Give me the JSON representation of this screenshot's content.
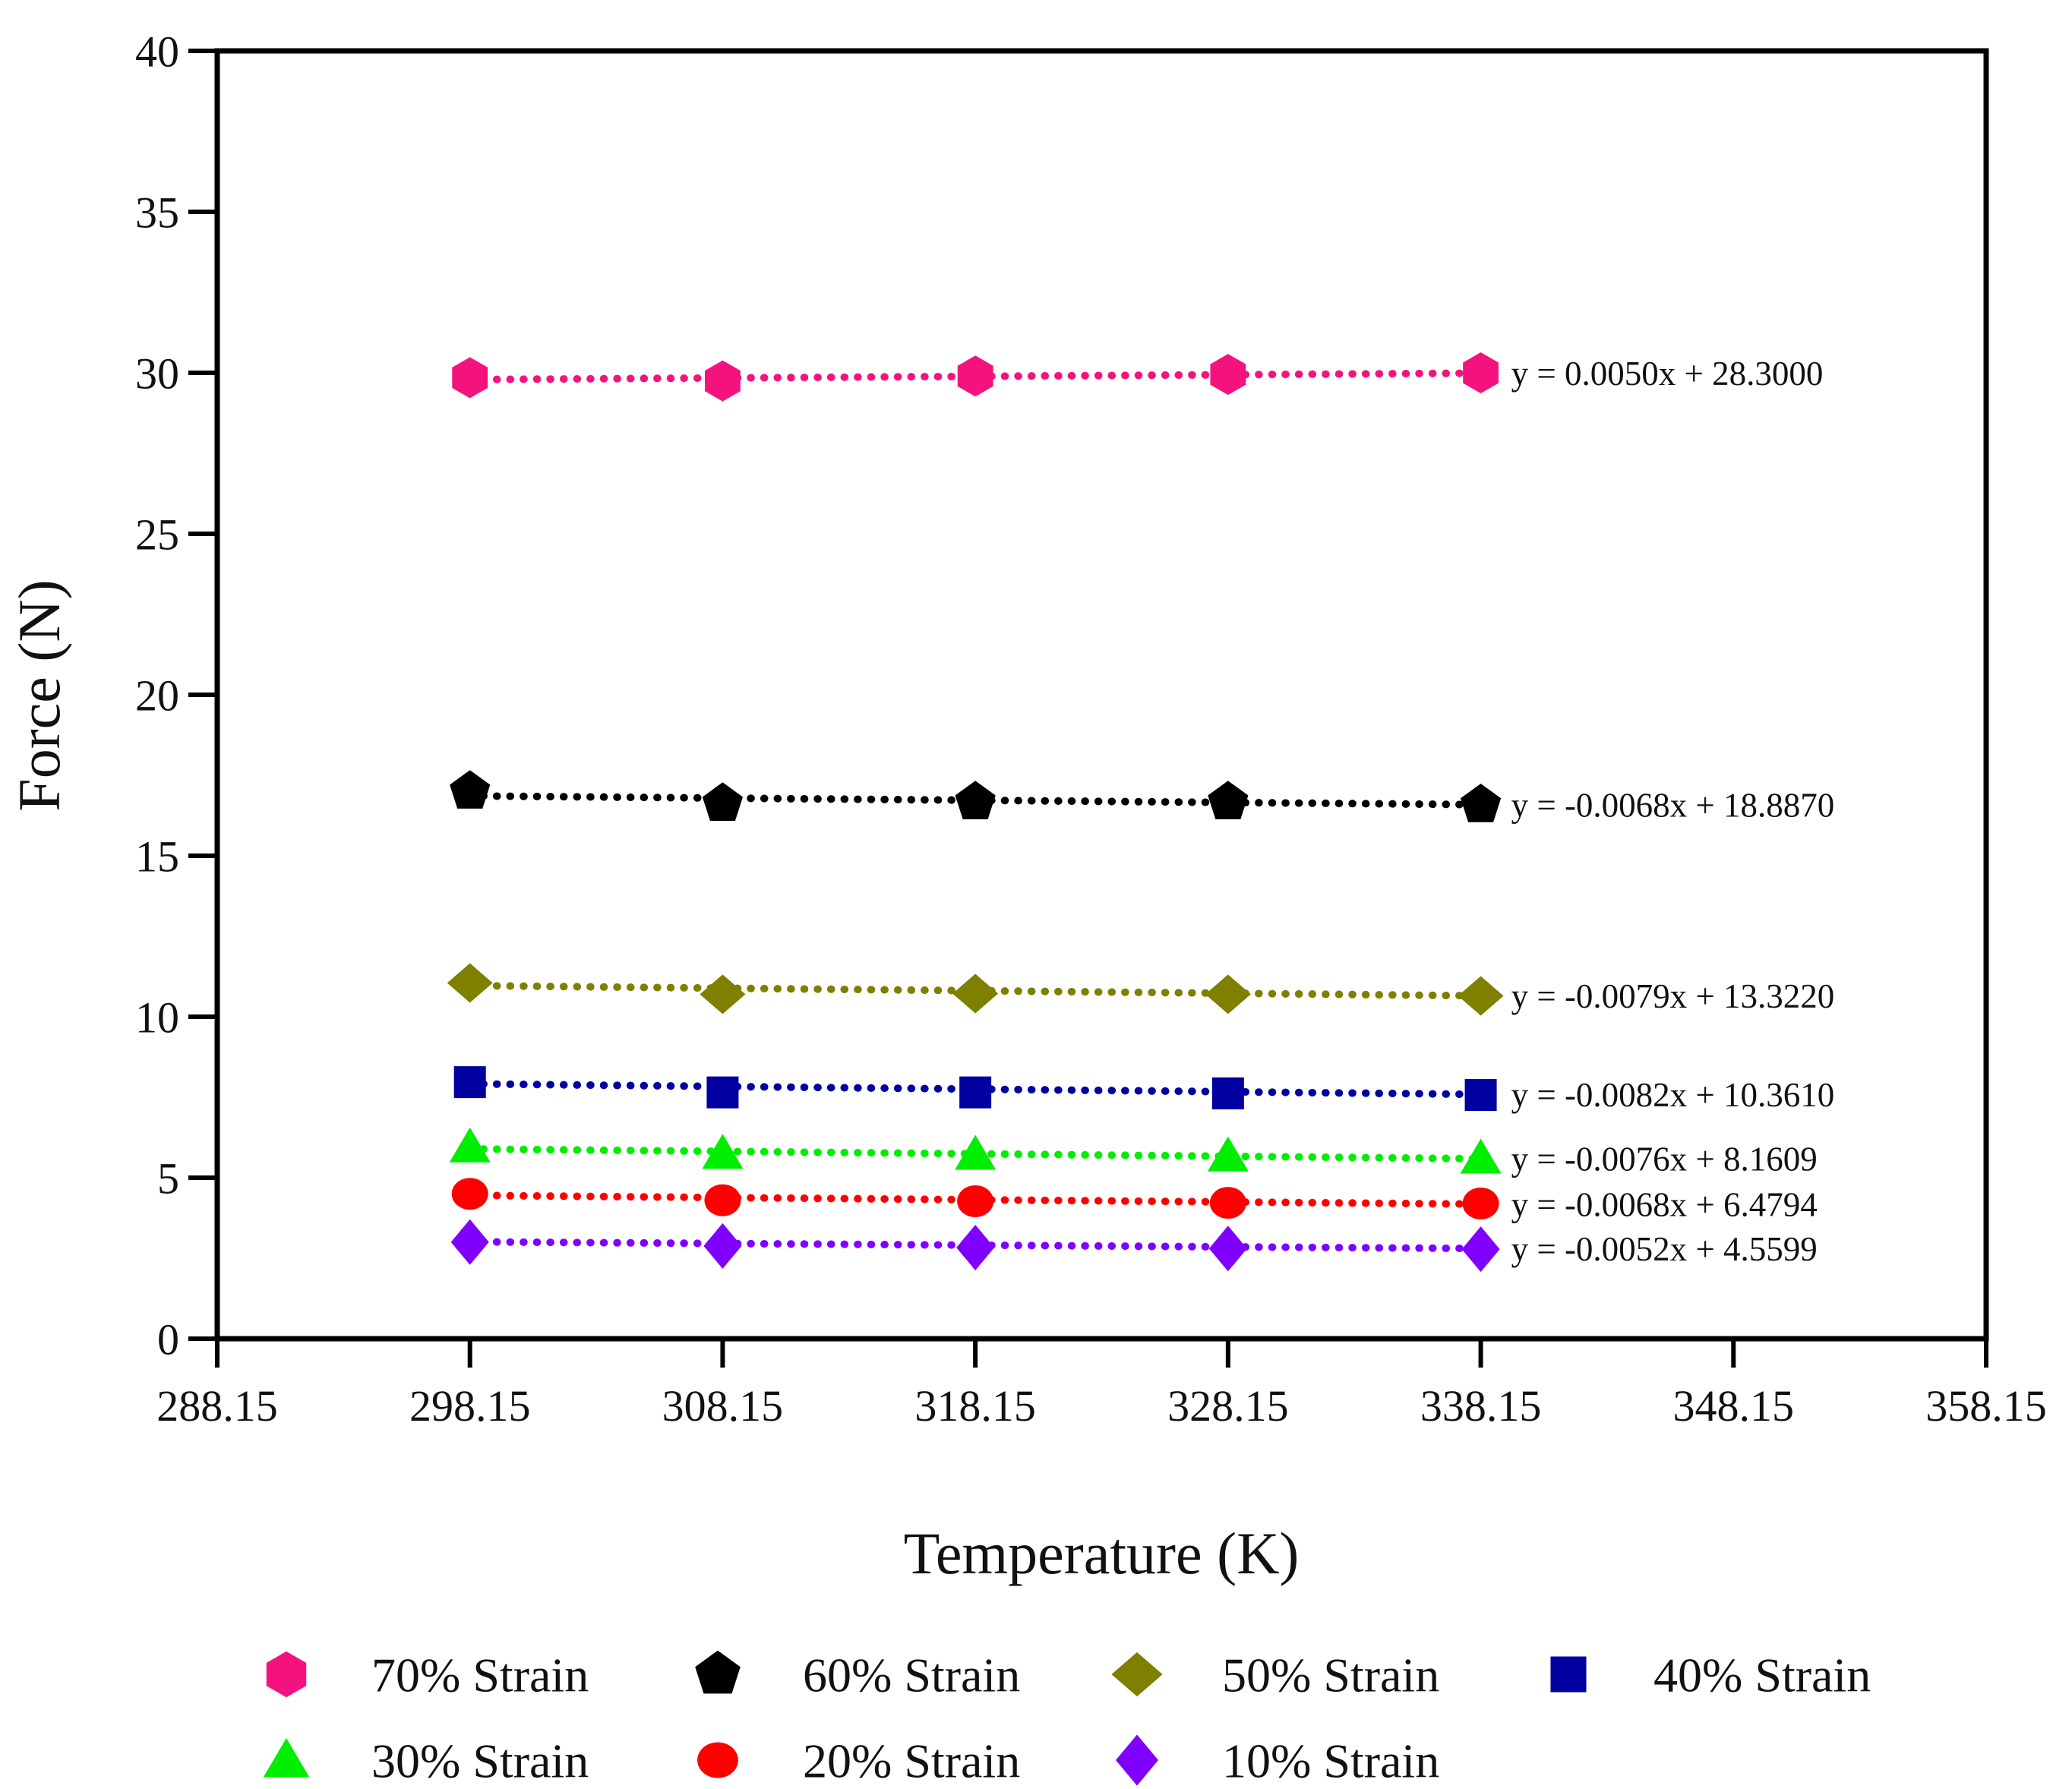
{
  "chart_data": {
    "type": "scatter",
    "title": "",
    "xlabel": "Temperature (K)",
    "ylabel": "Force (N)",
    "xlim": [
      288.15,
      358.15
    ],
    "ylim": [
      0,
      40
    ],
    "grid": false,
    "legend_position": "bottom",
    "trendline_style": "dotted",
    "x_ticks": [
      288.15,
      298.15,
      308.15,
      318.15,
      328.15,
      338.15,
      348.15,
      358.15
    ],
    "x_tick_labels": [
      "288.15",
      "298.15",
      "308.15",
      "318.15",
      "328.15",
      "338.15",
      "348.15",
      "358.15"
    ],
    "y_ticks": [
      0,
      5,
      10,
      15,
      20,
      25,
      30,
      35,
      40
    ],
    "y_tick_labels": [
      "0",
      "5",
      "10",
      "15",
      "20",
      "25",
      "30",
      "35",
      "40"
    ],
    "x": [
      298.15,
      308.15,
      318.15,
      328.15,
      338.15
    ],
    "series": [
      {
        "name": "70% Strain",
        "color": "#f4137e",
        "marker": "hexagon",
        "values": [
          29.85,
          29.75,
          29.9,
          29.95,
          30.0
        ],
        "fit": {
          "slope": 0.005,
          "intercept": 28.3
        },
        "equation": "y = 0.0050x + 28.3000"
      },
      {
        "name": "60% Strain",
        "color": "#000000",
        "marker": "pentagon",
        "values": [
          17.0,
          16.62,
          16.67,
          16.67,
          16.58
        ],
        "fit": {
          "slope": -0.0068,
          "intercept": 18.887
        },
        "equation": "y = -0.0068x + 18.8870"
      },
      {
        "name": "50% Strain",
        "color": "#7f7f00",
        "marker": "diamond-wide",
        "values": [
          11.05,
          10.7,
          10.72,
          10.7,
          10.65
        ],
        "fit": {
          "slope": -0.0079,
          "intercept": 13.322
        },
        "equation": "y = -0.0079x + 13.3220"
      },
      {
        "name": "40% Strain",
        "color": "#0000a0",
        "marker": "square",
        "values": [
          7.97,
          7.65,
          7.65,
          7.62,
          7.57
        ],
        "fit": {
          "slope": -0.0082,
          "intercept": 10.361
        },
        "equation": "y = -0.0082x + 10.3610"
      },
      {
        "name": "30% Strain",
        "color": "#00ee00",
        "marker": "triangle",
        "values": [
          5.95,
          5.75,
          5.72,
          5.67,
          5.6
        ],
        "fit": {
          "slope": -0.0076,
          "intercept": 8.1609
        },
        "equation": "y = -0.0076x + 8.1609"
      },
      {
        "name": "20% Strain",
        "color": "#ff0000",
        "marker": "circle",
        "values": [
          4.5,
          4.3,
          4.27,
          4.22,
          4.2
        ],
        "fit": {
          "slope": -0.0068,
          "intercept": 6.4794
        },
        "equation": "y = -0.0068x + 6.4794"
      },
      {
        "name": "10% Strain",
        "color": "#8000ff",
        "marker": "diamond-tall",
        "values": [
          3.0,
          2.88,
          2.83,
          2.8,
          2.78
        ],
        "fit": {
          "slope": -0.0052,
          "intercept": 4.5599
        },
        "equation": "y = -0.0052x + 4.5599"
      }
    ]
  }
}
